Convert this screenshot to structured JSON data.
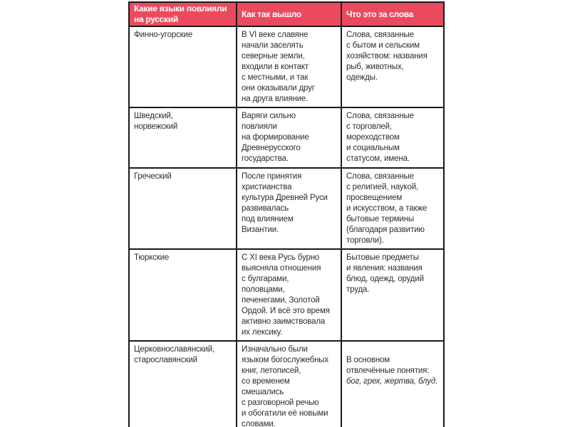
{
  "page": {
    "background_color": "#ffffff"
  },
  "table": {
    "accent_color": "#ea4a5e",
    "border_color": "#1a1a1a",
    "header_text_color": "#ffffff",
    "headers": [
      "Какие языки повлияли\nна русский",
      "Как так вышло",
      "Что это за слова"
    ],
    "rows": [
      {
        "language": "Финно-угорские",
        "how": "В VI веке славяне\nначали заселять\nсеверные земли,\nвходили в контакт\nс местными, и так\nони оказывали друг\nна друга влияние.",
        "words": "Слова, связанные\nс бытом и сельским\nхозяйством: названия\nрыб, животных,\nодежды."
      },
      {
        "language": "Шведский,\nнорвежский",
        "how": "Варяги сильно\nповлияли\nна формирование\nДревнерусского\nгосударства.",
        "words": "Слова, связанные\nс торговлей,\nмореходством\nи социальным\nстатусом, имена."
      },
      {
        "language": "Греческий",
        "how": "После принятия\nхристианства\nкультура Древней Руси\nразвивалась\nпод влиянием\nВизантии.",
        "words": "Слова, связанные\nс религией, наукой,\nпросвещением\nи искусством, а также\nбытовые термины\n(благодаря развитию\nторговли)."
      },
      {
        "language": "Тюркские",
        "how": "С XI века Русь бурно\nвыясняла отношения\nс булгарами,\nполовцами,\nпеченегами, Золотой\nОрдой. И всё это время\nактивно заимствовала\nих лексику.",
        "words": "Бытовые предметы\nи явления: названия\nблюд, одежд, орудий\nтруда."
      },
      {
        "language": "Церковнославянский,\nстарославянский",
        "how": "Изначально были\nязыком богослужебных\nкниг, летописей,\nсо временем\nсмешались\nс разговорной речью\nи обогатили её новыми\nсловами.",
        "words": "В основном\nотвлечённые понятия:",
        "words_italic": "бог, грех, жертва, блуд."
      }
    ]
  }
}
